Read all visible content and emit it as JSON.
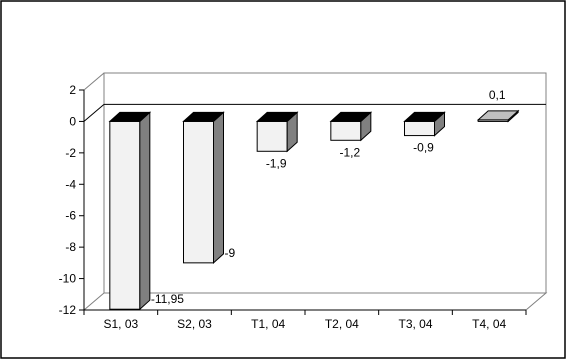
{
  "chart_data": {
    "type": "bar",
    "style": "3d-column",
    "categories": [
      "S1, 03",
      "S2, 03",
      "T1, 04",
      "T2, 04",
      "T3, 04",
      "T4, 04"
    ],
    "values": [
      -11.95,
      -9,
      -1.9,
      -1.2,
      -0.9,
      0.1
    ],
    "data_labels": [
      "-11,95",
      "-9",
      "-1,9",
      "-1,2",
      "-0,9",
      "0,1"
    ],
    "y_ticks": [
      2,
      0,
      -2,
      -4,
      -6,
      -8,
      -10,
      -12
    ],
    "y_tick_labels": [
      "2",
      "0",
      "-2",
      "-4",
      "-6",
      "-8",
      "-10",
      "-12"
    ],
    "ylim": [
      -12,
      2
    ],
    "grid": false,
    "legend": "none",
    "title": "",
    "xlabel": "",
    "ylabel": "",
    "colors": {
      "bar_front": "#f2f2f2",
      "bar_side": "#808080",
      "bar_top": "#000000",
      "positive_bar_top": "#c0c0c0",
      "axis": "#000000",
      "wall": "#808080"
    }
  }
}
